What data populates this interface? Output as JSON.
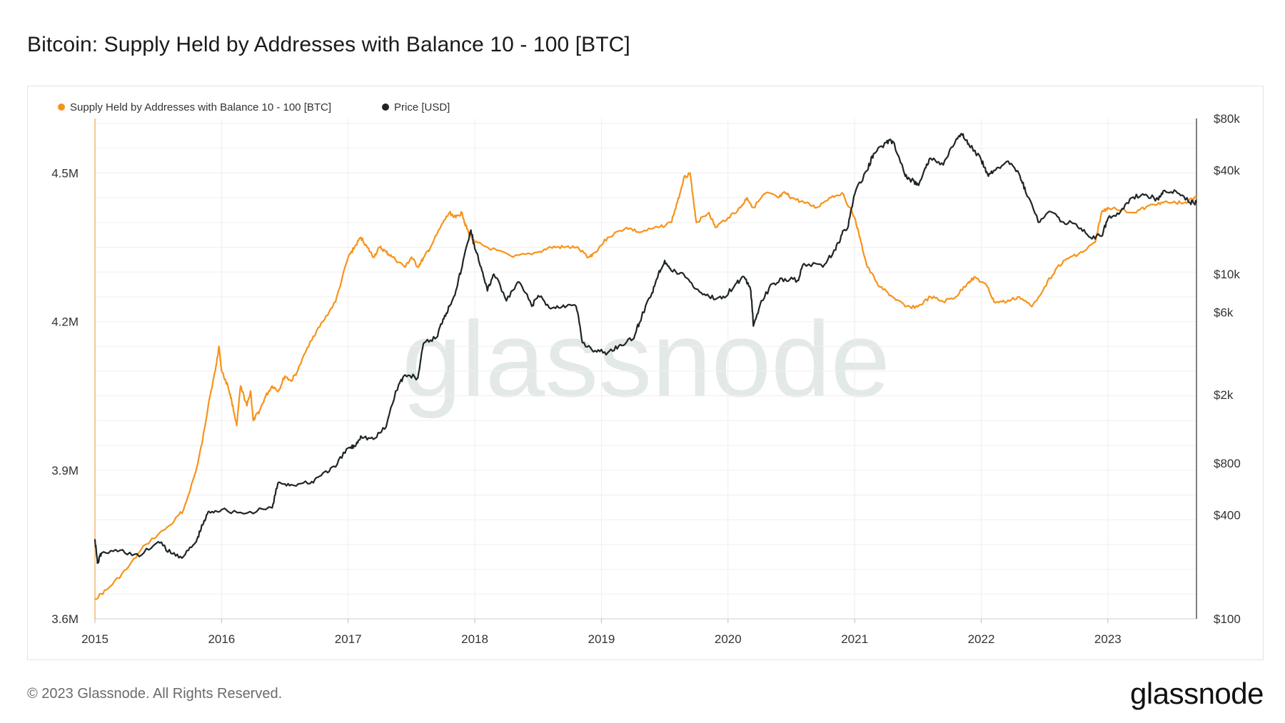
{
  "title": "Bitcoin: Supply Held by Addresses with Balance 10 - 100 [BTC]",
  "footer": "© 2023 Glassnode. All Rights Reserved.",
  "brand": "glassnode",
  "watermark": "glassnode",
  "chart_data": {
    "type": "line",
    "title": "Bitcoin: Supply Held by Addresses with Balance 10 - 100 [BTC]",
    "x_ticks": [
      "2015",
      "2016",
      "2017",
      "2018",
      "2019",
      "2020",
      "2021",
      "2022",
      "2023"
    ],
    "x_range": [
      2015.0,
      2023.7
    ],
    "y_left": {
      "ticks": [
        "3.6M",
        "3.9M",
        "4.2M",
        "4.5M"
      ],
      "tick_values": [
        3.6,
        3.9,
        4.2,
        4.5
      ],
      "range": [
        3.6,
        4.61
      ],
      "unit": "M BTC"
    },
    "y_right": {
      "scale": "log",
      "ticks": [
        "$100",
        "$400",
        "$800",
        "$2k",
        "$6k",
        "$10k",
        "$40k",
        "$80k"
      ],
      "tick_values": [
        100,
        400,
        800,
        2000,
        6000,
        10000,
        40000,
        80000
      ],
      "range": [
        100,
        80000
      ]
    },
    "legend_position": "top-left",
    "series": [
      {
        "name": "Supply Held by Addresses with Balance 10 - 100 [BTC]",
        "axis": "left",
        "color": "#f7931a",
        "points": [
          [
            2015.0,
            3.64
          ],
          [
            2015.1,
            3.66
          ],
          [
            2015.25,
            3.7
          ],
          [
            2015.4,
            3.75
          ],
          [
            2015.6,
            3.79
          ],
          [
            2015.7,
            3.82
          ],
          [
            2015.8,
            3.9
          ],
          [
            2015.85,
            3.96
          ],
          [
            2015.9,
            4.04
          ],
          [
            2015.95,
            4.1
          ],
          [
            2015.98,
            4.15
          ],
          [
            2016.0,
            4.1
          ],
          [
            2016.05,
            4.07
          ],
          [
            2016.08,
            4.04
          ],
          [
            2016.12,
            3.99
          ],
          [
            2016.15,
            4.07
          ],
          [
            2016.2,
            4.03
          ],
          [
            2016.23,
            4.06
          ],
          [
            2016.25,
            4.0
          ],
          [
            2016.3,
            4.02
          ],
          [
            2016.35,
            4.05
          ],
          [
            2016.4,
            4.07
          ],
          [
            2016.45,
            4.06
          ],
          [
            2016.5,
            4.09
          ],
          [
            2016.55,
            4.08
          ],
          [
            2016.6,
            4.1
          ],
          [
            2016.7,
            4.16
          ],
          [
            2016.8,
            4.2
          ],
          [
            2016.9,
            4.24
          ],
          [
            2017.0,
            4.33
          ],
          [
            2017.05,
            4.35
          ],
          [
            2017.1,
            4.37
          ],
          [
            2017.15,
            4.35
          ],
          [
            2017.2,
            4.33
          ],
          [
            2017.25,
            4.35
          ],
          [
            2017.3,
            4.34
          ],
          [
            2017.35,
            4.33
          ],
          [
            2017.45,
            4.31
          ],
          [
            2017.5,
            4.33
          ],
          [
            2017.55,
            4.31
          ],
          [
            2017.6,
            4.33
          ],
          [
            2017.65,
            4.35
          ],
          [
            2017.75,
            4.4
          ],
          [
            2017.8,
            4.42
          ],
          [
            2017.85,
            4.41
          ],
          [
            2017.9,
            4.42
          ],
          [
            2017.92,
            4.4
          ],
          [
            2017.95,
            4.38
          ],
          [
            2018.0,
            4.36
          ],
          [
            2018.1,
            4.35
          ],
          [
            2018.3,
            4.33
          ],
          [
            2018.5,
            4.34
          ],
          [
            2018.6,
            4.35
          ],
          [
            2018.7,
            4.35
          ],
          [
            2018.8,
            4.35
          ],
          [
            2018.9,
            4.33
          ],
          [
            2018.95,
            4.34
          ],
          [
            2019.05,
            4.37
          ],
          [
            2019.2,
            4.39
          ],
          [
            2019.3,
            4.38
          ],
          [
            2019.45,
            4.39
          ],
          [
            2019.55,
            4.4
          ],
          [
            2019.6,
            4.44
          ],
          [
            2019.65,
            4.49
          ],
          [
            2019.7,
            4.5
          ],
          [
            2019.72,
            4.46
          ],
          [
            2019.75,
            4.4
          ],
          [
            2019.85,
            4.42
          ],
          [
            2019.9,
            4.39
          ],
          [
            2020.0,
            4.41
          ],
          [
            2020.1,
            4.43
          ],
          [
            2020.15,
            4.45
          ],
          [
            2020.2,
            4.43
          ],
          [
            2020.3,
            4.46
          ],
          [
            2020.4,
            4.45
          ],
          [
            2020.45,
            4.46
          ],
          [
            2020.5,
            4.45
          ],
          [
            2020.6,
            4.44
          ],
          [
            2020.7,
            4.43
          ],
          [
            2020.8,
            4.45
          ],
          [
            2020.9,
            4.46
          ],
          [
            2021.0,
            4.41
          ],
          [
            2021.05,
            4.36
          ],
          [
            2021.1,
            4.31
          ],
          [
            2021.2,
            4.27
          ],
          [
            2021.3,
            4.25
          ],
          [
            2021.4,
            4.23
          ],
          [
            2021.5,
            4.23
          ],
          [
            2021.6,
            4.25
          ],
          [
            2021.7,
            4.24
          ],
          [
            2021.8,
            4.25
          ],
          [
            2021.9,
            4.28
          ],
          [
            2021.95,
            4.29
          ],
          [
            2022.05,
            4.27
          ],
          [
            2022.1,
            4.24
          ],
          [
            2022.2,
            4.24
          ],
          [
            2022.3,
            4.25
          ],
          [
            2022.4,
            4.23
          ],
          [
            2022.5,
            4.27
          ],
          [
            2022.6,
            4.31
          ],
          [
            2022.7,
            4.33
          ],
          [
            2022.8,
            4.34
          ],
          [
            2022.9,
            4.36
          ],
          [
            2022.95,
            4.42
          ],
          [
            2023.0,
            4.43
          ],
          [
            2023.2,
            4.42
          ],
          [
            2023.3,
            4.43
          ],
          [
            2023.4,
            4.44
          ],
          [
            2023.5,
            4.44
          ],
          [
            2023.6,
            4.44
          ],
          [
            2023.7,
            4.45
          ]
        ]
      },
      {
        "name": "Price [USD]",
        "axis": "right",
        "color": "#1f2526",
        "points": [
          [
            2015.0,
            290
          ],
          [
            2015.02,
            210
          ],
          [
            2015.05,
            240
          ],
          [
            2015.2,
            250
          ],
          [
            2015.35,
            230
          ],
          [
            2015.5,
            280
          ],
          [
            2015.6,
            240
          ],
          [
            2015.7,
            230
          ],
          [
            2015.8,
            280
          ],
          [
            2015.85,
            350
          ],
          [
            2015.9,
            420
          ],
          [
            2016.0,
            430
          ],
          [
            2016.2,
            410
          ],
          [
            2016.4,
            440
          ],
          [
            2016.45,
            620
          ],
          [
            2016.55,
            600
          ],
          [
            2016.7,
            610
          ],
          [
            2016.8,
            700
          ],
          [
            2016.9,
            760
          ],
          [
            2017.0,
            980
          ],
          [
            2017.05,
            1000
          ],
          [
            2017.1,
            1150
          ],
          [
            2017.2,
            1100
          ],
          [
            2017.3,
            1300
          ],
          [
            2017.4,
            2300
          ],
          [
            2017.45,
            2600
          ],
          [
            2017.55,
            2500
          ],
          [
            2017.6,
            4000
          ],
          [
            2017.7,
            4300
          ],
          [
            2017.75,
            5500
          ],
          [
            2017.8,
            6500
          ],
          [
            2017.85,
            8000
          ],
          [
            2017.9,
            11000
          ],
          [
            2017.97,
            18000
          ],
          [
            2018.0,
            14000
          ],
          [
            2018.05,
            11000
          ],
          [
            2018.1,
            8000
          ],
          [
            2018.15,
            10000
          ],
          [
            2018.25,
            7000
          ],
          [
            2018.35,
            9000
          ],
          [
            2018.45,
            6500
          ],
          [
            2018.5,
            7500
          ],
          [
            2018.6,
            6300
          ],
          [
            2018.7,
            6600
          ],
          [
            2018.8,
            6500
          ],
          [
            2018.85,
            4000
          ],
          [
            2018.95,
            3600
          ],
          [
            2019.05,
            3500
          ],
          [
            2019.15,
            3900
          ],
          [
            2019.25,
            4200
          ],
          [
            2019.3,
            5200
          ],
          [
            2019.4,
            7800
          ],
          [
            2019.45,
            10000
          ],
          [
            2019.5,
            12000
          ],
          [
            2019.55,
            10500
          ],
          [
            2019.65,
            10000
          ],
          [
            2019.75,
            8200
          ],
          [
            2019.85,
            7400
          ],
          [
            2019.95,
            7200
          ],
          [
            2020.05,
            8500
          ],
          [
            2020.12,
            9700
          ],
          [
            2020.18,
            8000
          ],
          [
            2020.2,
            5000
          ],
          [
            2020.25,
            6500
          ],
          [
            2020.35,
            8800
          ],
          [
            2020.45,
            9400
          ],
          [
            2020.55,
            9200
          ],
          [
            2020.6,
            11500
          ],
          [
            2020.75,
            11000
          ],
          [
            2020.85,
            13800
          ],
          [
            2020.9,
            17000
          ],
          [
            2020.95,
            19000
          ],
          [
            2021.0,
            29000
          ],
          [
            2021.1,
            40000
          ],
          [
            2021.15,
            50000
          ],
          [
            2021.25,
            58000
          ],
          [
            2021.3,
            59000
          ],
          [
            2021.4,
            37000
          ],
          [
            2021.45,
            35000
          ],
          [
            2021.5,
            33000
          ],
          [
            2021.55,
            40000
          ],
          [
            2021.6,
            47000
          ],
          [
            2021.7,
            43000
          ],
          [
            2021.8,
            60000
          ],
          [
            2021.85,
            64000
          ],
          [
            2021.9,
            57000
          ],
          [
            2022.0,
            46000
          ],
          [
            2022.05,
            38000
          ],
          [
            2022.1,
            40000
          ],
          [
            2022.2,
            45000
          ],
          [
            2022.3,
            38000
          ],
          [
            2022.35,
            30000
          ],
          [
            2022.45,
            20000
          ],
          [
            2022.55,
            23000
          ],
          [
            2022.65,
            20000
          ],
          [
            2022.75,
            19500
          ],
          [
            2022.85,
            16500
          ],
          [
            2022.95,
            16600
          ],
          [
            2023.0,
            21000
          ],
          [
            2023.1,
            23000
          ],
          [
            2023.2,
            28000
          ],
          [
            2023.3,
            29000
          ],
          [
            2023.4,
            27000
          ],
          [
            2023.45,
            30500
          ],
          [
            2023.55,
            29500
          ],
          [
            2023.65,
            26000
          ],
          [
            2023.7,
            26000
          ]
        ]
      }
    ]
  }
}
